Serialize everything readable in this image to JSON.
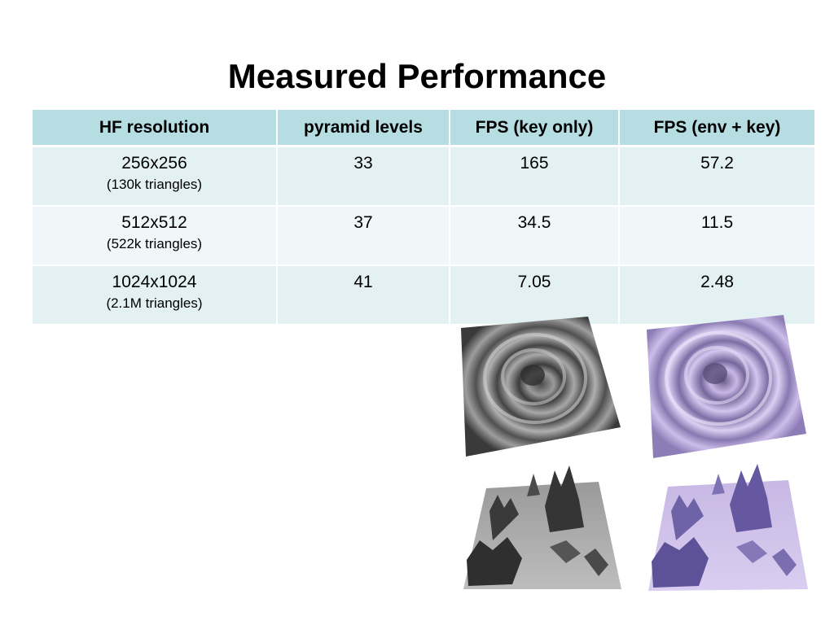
{
  "slide": {
    "title": "Measured Performance"
  },
  "table": {
    "headers": [
      "HF resolution",
      "pyramid levels",
      "FPS (key only)",
      "FPS (env + key)"
    ],
    "rows": [
      {
        "resolution": "256x256",
        "triangles": "(130k triangles)",
        "levels": "33",
        "fps_key": "165",
        "fps_env_key": "57.2"
      },
      {
        "resolution": "512x512",
        "triangles": "(522k triangles)",
        "levels": "37",
        "fps_key": "34.5",
        "fps_env_key": "11.5"
      },
      {
        "resolution": "1024x1024",
        "triangles": "(2.1M triangles)",
        "levels": "41",
        "fps_key": "7.05",
        "fps_env_key": "2.48"
      }
    ]
  },
  "images": [
    {
      "name": "ripple-terrain-gray",
      "color": "#6b6b6b"
    },
    {
      "name": "ripple-terrain-purple",
      "color": "#a58fc8"
    },
    {
      "name": "mountain-terrain-gray",
      "color": "#8a8a8a"
    },
    {
      "name": "mountain-terrain-purple",
      "color": "#b7a3dc"
    }
  ]
}
